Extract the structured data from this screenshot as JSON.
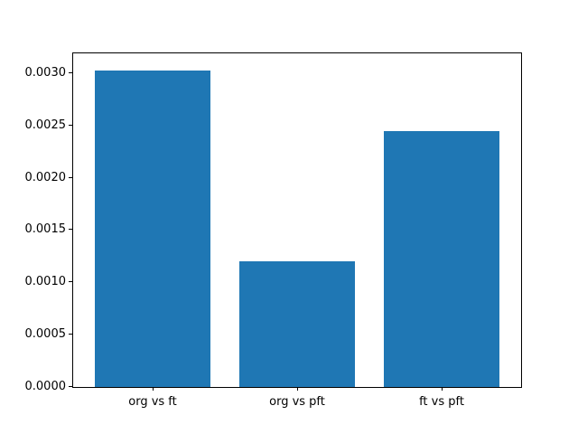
{
  "chart_data": {
    "type": "bar",
    "title": "",
    "xlabel": "",
    "ylabel": "",
    "categories": [
      "org vs ft",
      "org vs pft",
      "ft vs pft"
    ],
    "values": [
      0.00303,
      0.0012,
      0.00245
    ],
    "bar_color": "#1f77b4",
    "bar_width": 0.8,
    "xlim": [
      -0.55,
      2.55
    ],
    "ylim": [
      0,
      0.00319
    ],
    "yticks": [
      0.0,
      0.0005,
      0.001,
      0.0015,
      0.002,
      0.0025,
      0.003
    ],
    "ytick_decimals": 4,
    "grid": false,
    "legend": false,
    "spine_color": "#000000",
    "tick_color": "#000000",
    "text_color": "#000000",
    "background_color": "#ffffff"
  }
}
